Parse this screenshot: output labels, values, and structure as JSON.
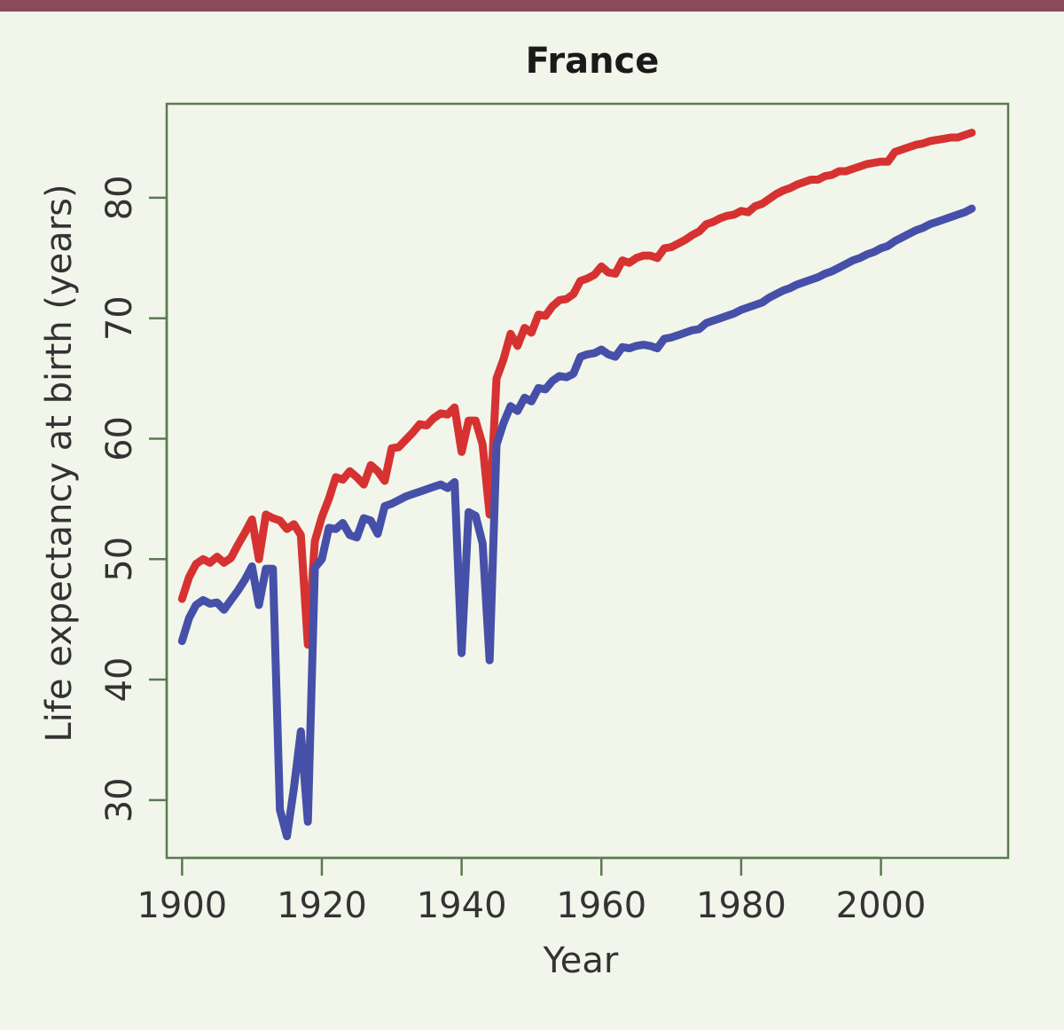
{
  "colors": {
    "top_bar": "#8a4a5a",
    "background": "#f2f6ea",
    "frame": "#5a7a50",
    "series_1": "#d63232",
    "series_2": "#4650a8"
  },
  "chart_data": {
    "type": "line",
    "title": "France",
    "xlabel": "Year",
    "ylabel": "Life expectancy at birth (years)",
    "xlim": [
      1897.8,
      2018.2
    ],
    "ylim": [
      25.2,
      87.8
    ],
    "x_ticks": [
      1900,
      1920,
      1940,
      1960,
      1980,
      2000
    ],
    "y_ticks": [
      30,
      40,
      50,
      60,
      70,
      80
    ],
    "grid": false,
    "legend": "none",
    "series": [
      {
        "color": "#d63232",
        "x": [
          1900,
          1901,
          1902,
          1903,
          1904,
          1905,
          1906,
          1907,
          1908,
          1909,
          1910,
          1911,
          1912,
          1913,
          1914,
          1915,
          1916,
          1917,
          1918,
          1919,
          1920,
          1921,
          1922,
          1923,
          1924,
          1925,
          1926,
          1927,
          1928,
          1929,
          1930,
          1931,
          1932,
          1933,
          1934,
          1935,
          1936,
          1937,
          1938,
          1939,
          1940,
          1941,
          1942,
          1943,
          1944,
          1945,
          1946,
          1947,
          1948,
          1949,
          1950,
          1951,
          1952,
          1953,
          1954,
          1955,
          1956,
          1957,
          1958,
          1959,
          1960,
          1961,
          1962,
          1963,
          1964,
          1965,
          1966,
          1967,
          1968,
          1969,
          1970,
          1971,
          1972,
          1973,
          1974,
          1975,
          1976,
          1977,
          1978,
          1979,
          1980,
          1981,
          1982,
          1983,
          1984,
          1985,
          1986,
          1987,
          1988,
          1989,
          1990,
          1991,
          1992,
          1993,
          1994,
          1995,
          1996,
          1997,
          1998,
          1999,
          2000,
          2001,
          2002,
          2003,
          2004,
          2005,
          2006,
          2007,
          2008,
          2009,
          2010,
          2011,
          2012,
          2013
        ],
        "values": [
          46.7,
          48.5,
          49.6,
          50.0,
          49.7,
          50.2,
          49.7,
          50.1,
          51.2,
          52.2,
          53.3,
          50.0,
          53.7,
          53.4,
          53.2,
          52.5,
          52.9,
          52.0,
          42.9,
          51.5,
          53.5,
          55.0,
          56.8,
          56.6,
          57.3,
          56.8,
          56.2,
          57.8,
          57.3,
          56.5,
          59.2,
          59.3,
          59.9,
          60.5,
          61.2,
          61.1,
          61.7,
          62.1,
          62.0,
          62.6,
          58.9,
          61.5,
          61.5,
          59.5,
          53.7,
          65.0,
          66.6,
          68.7,
          67.7,
          69.2,
          68.8,
          70.3,
          70.2,
          71.0,
          71.5,
          71.6,
          72.0,
          73.1,
          73.3,
          73.6,
          74.3,
          73.8,
          73.7,
          74.8,
          74.6,
          75.0,
          75.2,
          75.2,
          75.0,
          75.8,
          75.9,
          76.2,
          76.5,
          76.9,
          77.2,
          77.8,
          78.0,
          78.3,
          78.5,
          78.6,
          78.9,
          78.8,
          79.3,
          79.5,
          79.9,
          80.3,
          80.6,
          80.8,
          81.1,
          81.3,
          81.5,
          81.5,
          81.8,
          81.9,
          82.2,
          82.2,
          82.4,
          82.6,
          82.8,
          82.9,
          83.0,
          83.0,
          83.8,
          84.0,
          84.2,
          84.4,
          84.5,
          84.7,
          84.8,
          84.9,
          85.0,
          85.0,
          85.2,
          85.4
        ]
      },
      {
        "color": "#4650a8",
        "x": [
          1900,
          1901,
          1902,
          1903,
          1904,
          1905,
          1906,
          1907,
          1908,
          1909,
          1910,
          1911,
          1912,
          1913,
          1914,
          1915,
          1916,
          1917,
          1918,
          1919,
          1920,
          1921,
          1922,
          1923,
          1924,
          1925,
          1926,
          1927,
          1928,
          1929,
          1930,
          1931,
          1932,
          1933,
          1934,
          1935,
          1936,
          1937,
          1938,
          1939,
          1940,
          1941,
          1942,
          1943,
          1944,
          1945,
          1946,
          1947,
          1948,
          1949,
          1950,
          1951,
          1952,
          1953,
          1954,
          1955,
          1956,
          1957,
          1958,
          1959,
          1960,
          1961,
          1962,
          1963,
          1964,
          1965,
          1966,
          1967,
          1968,
          1969,
          1970,
          1971,
          1972,
          1973,
          1974,
          1975,
          1976,
          1977,
          1978,
          1979,
          1980,
          1981,
          1982,
          1983,
          1984,
          1985,
          1986,
          1987,
          1988,
          1989,
          1990,
          1991,
          1992,
          1993,
          1994,
          1995,
          1996,
          1997,
          1998,
          1999,
          2000,
          2001,
          2002,
          2003,
          2004,
          2005,
          2006,
          2007,
          2008,
          2009,
          2010,
          2011,
          2012,
          2013
        ],
        "values": [
          43.2,
          45.1,
          46.2,
          46.6,
          46.3,
          46.4,
          45.8,
          46.6,
          47.4,
          48.3,
          49.4,
          46.2,
          49.2,
          49.2,
          29.2,
          27.0,
          31.0,
          35.7,
          28.2,
          49.3,
          50.0,
          52.6,
          52.5,
          53.0,
          52.0,
          51.8,
          53.4,
          53.2,
          52.1,
          54.4,
          54.6,
          54.9,
          55.2,
          55.4,
          55.6,
          55.8,
          56.0,
          56.2,
          55.9,
          56.4,
          42.2,
          53.9,
          53.6,
          51.3,
          41.6,
          59.5,
          61.3,
          62.7,
          62.3,
          63.4,
          63.1,
          64.2,
          64.1,
          64.8,
          65.2,
          65.1,
          65.4,
          66.8,
          67.0,
          67.1,
          67.4,
          67.0,
          66.8,
          67.6,
          67.5,
          67.7,
          67.8,
          67.7,
          67.5,
          68.3,
          68.4,
          68.6,
          68.8,
          69.0,
          69.1,
          69.6,
          69.8,
          70.0,
          70.2,
          70.4,
          70.7,
          70.9,
          71.1,
          71.3,
          71.7,
          72.0,
          72.3,
          72.5,
          72.8,
          73.0,
          73.2,
          73.4,
          73.7,
          73.9,
          74.2,
          74.5,
          74.8,
          75.0,
          75.3,
          75.5,
          75.8,
          76.0,
          76.4,
          76.7,
          77.0,
          77.3,
          77.5,
          77.8,
          78.0,
          78.2,
          78.4,
          78.6,
          78.8,
          79.1
        ]
      }
    ]
  }
}
